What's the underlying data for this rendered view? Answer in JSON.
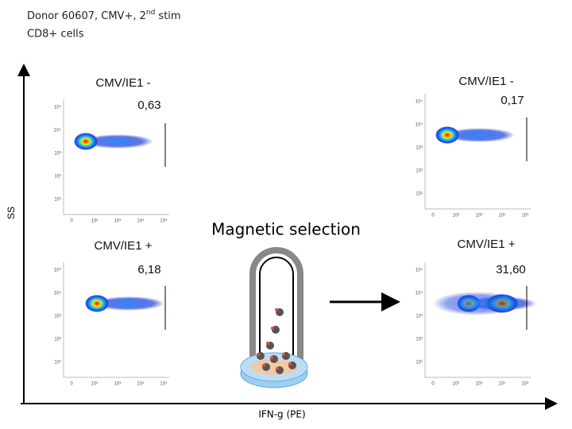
{
  "header": {
    "title": {
      "prefix": "Donor 60607, CMV+, 2",
      "sup": "nd",
      "suffix": " stim"
    },
    "subtitle": "CD8+ cells"
  },
  "axes": {
    "y_label": "SS",
    "x_label": "IFN-g (PE)"
  },
  "center_label": "Magnetic selection",
  "tick_labels": {
    "y": [
      "10⁵",
      "10⁴",
      "10³",
      "10²",
      "10¹"
    ],
    "x": [
      "0",
      "10²",
      "10³",
      "10⁴",
      "10⁵"
    ]
  },
  "plots": [
    {
      "title": "CMV/IE1 -",
      "value": "0,63"
    },
    {
      "title": "CMV/IE1 +",
      "value": "6,18"
    },
    {
      "title": "CMV/IE1 -",
      "value": "0,17"
    },
    {
      "title": "CMV/IE1 +",
      "value": "31,60"
    }
  ]
}
